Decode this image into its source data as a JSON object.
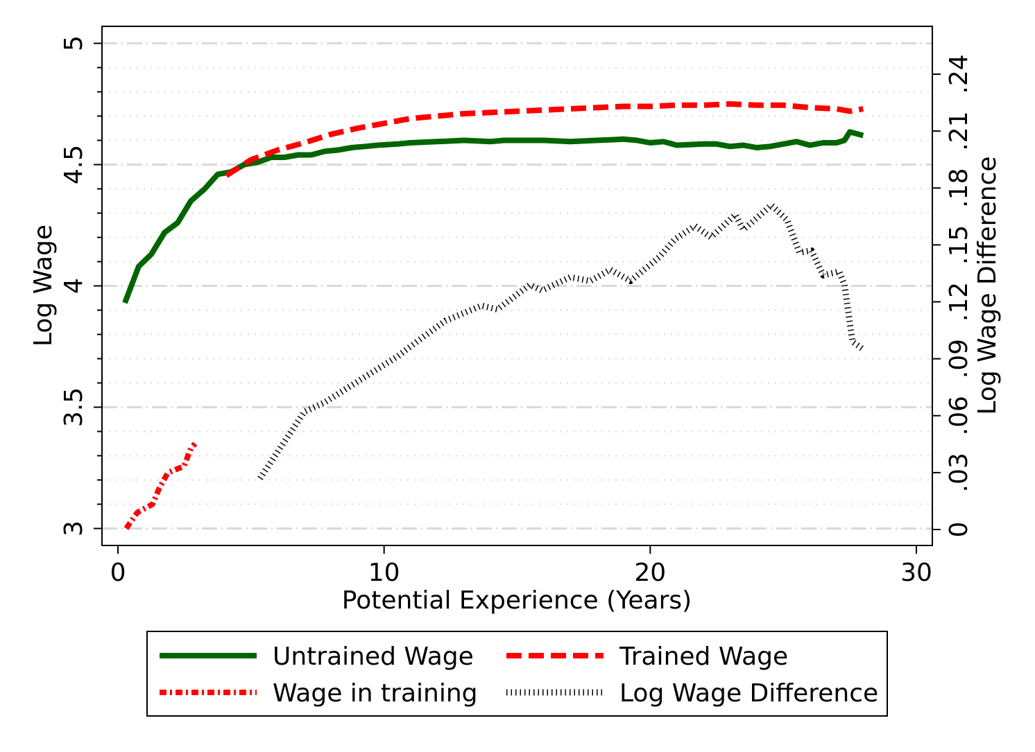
{
  "chart_data": {
    "type": "line",
    "xlabel": "Potential Experience (Years)",
    "ylabel": "Log Wage",
    "ylabel_right": "Log Wage Difference",
    "xlim": [
      -0.6,
      30.6
    ],
    "ylim": [
      2.93,
      5.07
    ],
    "ylim_right": [
      -0.0084,
      0.2652
    ],
    "x_ticks": [
      0,
      10,
      20,
      30
    ],
    "x_tick_labels": [
      "0",
      "10",
      "20",
      "30"
    ],
    "y_ticks": [
      3,
      3.5,
      4,
      4.5,
      5
    ],
    "y_tick_labels": [
      "3",
      "3.5",
      "4",
      "4.5",
      "5"
    ],
    "y_right_ticks": [
      0,
      0.03,
      0.06,
      0.09,
      0.12,
      0.15,
      0.18,
      0.21,
      0.24
    ],
    "y_right_tick_labels": [
      "0",
      ".03",
      ".06",
      ".09",
      ".12",
      ".15",
      ".18",
      ".21",
      ".24"
    ],
    "grid": true,
    "legend_position": "bottom",
    "series": [
      {
        "name": "Untrained Wage",
        "axis": "left",
        "color": "#006400",
        "style": "solid",
        "x": [
          0.26,
          0.78,
          1.25,
          1.75,
          2.24,
          2.74,
          3.26,
          3.75,
          4.25,
          4.74,
          5.26,
          5.76,
          6.25,
          6.78,
          7.27,
          7.77,
          8.26,
          8.78,
          9.28,
          9.77,
          10.5,
          11,
          12,
          13,
          14,
          14.5,
          15,
          16,
          17,
          18,
          19,
          19.5,
          20,
          20.5,
          21,
          22,
          22.5,
          23,
          23.5,
          24,
          24.5,
          25,
          25.5,
          26,
          26.5,
          27,
          27.3,
          27.5,
          28
        ],
        "y": [
          3.93,
          4.08,
          4.13,
          4.22,
          4.26,
          4.35,
          4.4,
          4.46,
          4.47,
          4.5,
          4.51,
          4.53,
          4.53,
          4.54,
          4.54,
          4.555,
          4.56,
          4.57,
          4.575,
          4.58,
          4.585,
          4.59,
          4.595,
          4.6,
          4.595,
          4.6,
          4.6,
          4.6,
          4.595,
          4.6,
          4.605,
          4.6,
          4.59,
          4.595,
          4.58,
          4.585,
          4.585,
          4.575,
          4.58,
          4.57,
          4.575,
          4.585,
          4.595,
          4.58,
          4.59,
          4.59,
          4.6,
          4.635,
          4.62
        ]
      },
      {
        "name": "Trained Wage",
        "axis": "left",
        "color": "#ff0000",
        "style": "dash",
        "x": [
          4.07,
          5,
          6,
          7,
          8,
          9,
          10,
          11,
          12,
          13,
          14,
          15,
          16,
          17,
          18,
          19,
          20,
          21,
          22,
          23,
          24,
          25,
          26,
          27,
          27.5,
          28
        ],
        "y": [
          4.455,
          4.52,
          4.56,
          4.59,
          4.625,
          4.65,
          4.67,
          4.69,
          4.7,
          4.71,
          4.715,
          4.72,
          4.725,
          4.73,
          4.735,
          4.74,
          4.74,
          4.745,
          4.745,
          4.75,
          4.745,
          4.745,
          4.735,
          4.73,
          4.72,
          4.73
        ]
      },
      {
        "name": "Wage in training",
        "axis": "left",
        "color": "#ff0000",
        "style": "dash-dot",
        "x": [
          0.31,
          0.73,
          1.3,
          1.56,
          1.88,
          2.48,
          2.74,
          2.9
        ],
        "y": [
          3.0,
          3.066,
          3.1,
          3.168,
          3.23,
          3.257,
          3.33,
          3.35
        ]
      },
      {
        "name": "Log Wage Difference",
        "axis": "right",
        "color": "#000000",
        "style": "dotted",
        "x": [
          5.34,
          7.0,
          7.77,
          9.12,
          10.48,
          11.23,
          12.3,
          13.66,
          14.26,
          15.48,
          15.93,
          16.99,
          17.75,
          18.5,
          19.26,
          20.33,
          20.93,
          21.68,
          22.28,
          23.2,
          23.5,
          24.55,
          25.15,
          25.6,
          26.06,
          26.5,
          27.1,
          27.3,
          27.6,
          28.0
        ],
        "y": [
          0.027,
          0.062,
          0.067,
          0.079,
          0.091,
          0.099,
          0.11,
          0.118,
          0.116,
          0.129,
          0.126,
          0.133,
          0.131,
          0.137,
          0.131,
          0.1435,
          0.153,
          0.16,
          0.154,
          0.166,
          0.158,
          0.171,
          0.163,
          0.146,
          0.147,
          0.134,
          0.136,
          0.129,
          0.099,
          0.095
        ]
      }
    ]
  }
}
